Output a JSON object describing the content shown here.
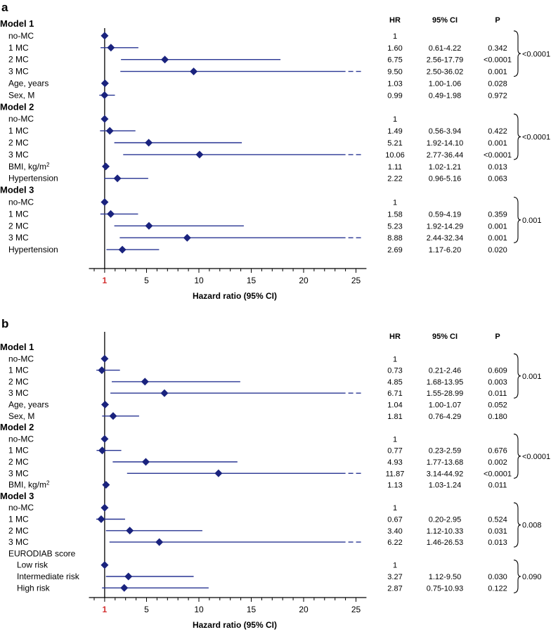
{
  "chart_data": [
    {
      "type": "forest",
      "panel_label": "a",
      "xlabel": "Hazard ratio (95% CI)",
      "xlim": [
        -0.5,
        26
      ],
      "xticks": [
        1,
        5,
        10,
        15,
        20,
        25
      ],
      "reference_line": 1,
      "arrow_cap": 24,
      "columns": {
        "hr": "HR",
        "ci": "95% CI",
        "p": "P"
      },
      "rows": [
        {
          "kind": "header",
          "label": "Model 1"
        },
        {
          "kind": "item",
          "label": "no-MC",
          "hr": 1,
          "lo": 1,
          "hi": 1,
          "hr_text": "1",
          "ci_text": "",
          "p_text": ""
        },
        {
          "kind": "item",
          "label": "1 MC",
          "hr": 1.6,
          "lo": 0.61,
          "hi": 4.22,
          "hr_text": "1.60",
          "ci_text": "0.61-4.22",
          "p_text": "0.342"
        },
        {
          "kind": "item",
          "label": "2 MC",
          "hr": 6.75,
          "lo": 2.56,
          "hi": 17.79,
          "hr_text": "6.75",
          "ci_text": "2.56-17.79",
          "p_text": "<0.0001"
        },
        {
          "kind": "item",
          "label": "3 MC",
          "hr": 9.5,
          "lo": 2.5,
          "hi": 36.02,
          "hr_text": "9.50",
          "ci_text": "2.50-36.02",
          "p_text": "0.001"
        },
        {
          "kind": "item",
          "label": "Age, years",
          "hr": 1.03,
          "lo": 1.0,
          "hi": 1.06,
          "hr_text": "1.03",
          "ci_text": "1.00-1.06",
          "p_text": "0.028"
        },
        {
          "kind": "item",
          "label": "Sex, M",
          "hr": 0.99,
          "lo": 0.49,
          "hi": 1.98,
          "hr_text": "0.99",
          "ci_text": "0.49-1.98",
          "p_text": "0.972"
        },
        {
          "kind": "header",
          "label": "Model 2"
        },
        {
          "kind": "item",
          "label": "no-MC",
          "hr": 1,
          "lo": 1,
          "hi": 1,
          "hr_text": "1",
          "ci_text": "",
          "p_text": ""
        },
        {
          "kind": "item",
          "label": "1 MC",
          "hr": 1.49,
          "lo": 0.56,
          "hi": 3.94,
          "hr_text": "1.49",
          "ci_text": "0.56-3.94",
          "p_text": "0.422"
        },
        {
          "kind": "item",
          "label": "2 MC",
          "hr": 5.21,
          "lo": 1.92,
          "hi": 14.1,
          "hr_text": "5.21",
          "ci_text": "1.92-14.10",
          "p_text": "0.001"
        },
        {
          "kind": "item",
          "label": "3 MC",
          "hr": 10.06,
          "lo": 2.77,
          "hi": 36.44,
          "hr_text": "10.06",
          "ci_text": "2.77-36.44",
          "p_text": "<0.0001"
        },
        {
          "kind": "item",
          "label": "BMI, kg/m",
          "sup": "2",
          "hr": 1.11,
          "lo": 1.02,
          "hi": 1.21,
          "hr_text": "1.11",
          "ci_text": "1.02-1.21",
          "p_text": "0.013"
        },
        {
          "kind": "item",
          "label": "Hypertension",
          "hr": 2.22,
          "lo": 0.96,
          "hi": 5.16,
          "hr_text": "2.22",
          "ci_text": "0.96-5.16",
          "p_text": "0.063"
        },
        {
          "kind": "header",
          "label": "Model 3"
        },
        {
          "kind": "item",
          "label": "no-MC",
          "hr": 1,
          "lo": 1,
          "hi": 1,
          "hr_text": "1",
          "ci_text": "",
          "p_text": ""
        },
        {
          "kind": "item",
          "label": "1 MC",
          "hr": 1.58,
          "lo": 0.59,
          "hi": 4.19,
          "hr_text": "1.58",
          "ci_text": "0.59-4.19",
          "p_text": "0.359"
        },
        {
          "kind": "item",
          "label": "2 MC",
          "hr": 5.23,
          "lo": 1.92,
          "hi": 14.29,
          "hr_text": "5.23",
          "ci_text": "1.92-14.29",
          "p_text": "0.001"
        },
        {
          "kind": "item",
          "label": "3 MC",
          "hr": 8.88,
          "lo": 2.44,
          "hi": 32.34,
          "hr_text": "8.88",
          "ci_text": "2.44-32.34",
          "p_text": "0.001"
        },
        {
          "kind": "item",
          "label": "Hypertension",
          "hr": 2.69,
          "lo": 1.17,
          "hi": 6.2,
          "hr_text": "2.69",
          "ci_text": "1.17-6.20",
          "p_text": "0.020"
        }
      ],
      "trend_brackets": [
        {
          "first_row": 1,
          "last_row": 4,
          "p_text": "<0.0001"
        },
        {
          "first_row": 8,
          "last_row": 11,
          "p_text": "<0.0001"
        },
        {
          "first_row": 15,
          "last_row": 18,
          "p_text": "0.001"
        }
      ]
    },
    {
      "type": "forest",
      "panel_label": "b",
      "xlabel": "Hazard ratio (95% CI)",
      "xlim": [
        -0.5,
        26
      ],
      "xticks": [
        1,
        5,
        10,
        15,
        20,
        25
      ],
      "reference_line": 1,
      "arrow_cap": 24,
      "columns": {
        "hr": "HR",
        "ci": "95% CI",
        "p": "P"
      },
      "rows": [
        {
          "kind": "header",
          "label": "Model 1"
        },
        {
          "kind": "item",
          "label": "no-MC",
          "hr": 1,
          "lo": 1,
          "hi": 1,
          "hr_text": "1",
          "ci_text": "",
          "p_text": ""
        },
        {
          "kind": "item",
          "label": "1 MC",
          "hr": 0.73,
          "lo": 0.21,
          "hi": 2.46,
          "hr_text": "0.73",
          "ci_text": "0.21-2.46",
          "p_text": "0.609"
        },
        {
          "kind": "item",
          "label": "2 MC",
          "hr": 4.85,
          "lo": 1.68,
          "hi": 13.95,
          "hr_text": "4.85",
          "ci_text": "1.68-13.95",
          "p_text": "0.003"
        },
        {
          "kind": "item",
          "label": "3 MC",
          "hr": 6.71,
          "lo": 1.55,
          "hi": 28.99,
          "hr_text": "6.71",
          "ci_text": "1.55-28.99",
          "p_text": "0.011"
        },
        {
          "kind": "item",
          "label": "Age, years",
          "hr": 1.04,
          "lo": 1.0,
          "hi": 1.07,
          "hr_text": "1.04",
          "ci_text": "1.00-1.07",
          "p_text": "0.052"
        },
        {
          "kind": "item",
          "label": "Sex, M",
          "hr": 1.81,
          "lo": 0.76,
          "hi": 4.29,
          "hr_text": "1.81",
          "ci_text": "0.76-4.29",
          "p_text": "0.180"
        },
        {
          "kind": "header",
          "label": "Model 2"
        },
        {
          "kind": "item",
          "label": "no-MC",
          "hr": 1,
          "lo": 1,
          "hi": 1,
          "hr_text": "1",
          "ci_text": "",
          "p_text": ""
        },
        {
          "kind": "item",
          "label": "1 MC",
          "hr": 0.77,
          "lo": 0.23,
          "hi": 2.59,
          "hr_text": "0.77",
          "ci_text": "0.23-2.59",
          "p_text": "0.676"
        },
        {
          "kind": "item",
          "label": "2 MC",
          "hr": 4.93,
          "lo": 1.77,
          "hi": 13.68,
          "hr_text": "4.93",
          "ci_text": "1.77-13.68",
          "p_text": "0.002"
        },
        {
          "kind": "item",
          "label": "3 MC",
          "hr": 11.87,
          "lo": 3.14,
          "hi": 44.92,
          "hr_text": "11.87",
          "ci_text": "3.14-44.92",
          "p_text": "<0.0001"
        },
        {
          "kind": "item",
          "label": "BMI, kg/m",
          "sup": "2",
          "hr": 1.13,
          "lo": 1.03,
          "hi": 1.24,
          "hr_text": "1.13",
          "ci_text": "1.03-1.24",
          "p_text": "0.011"
        },
        {
          "kind": "header",
          "label": "Model 3"
        },
        {
          "kind": "item",
          "label": "no-MC",
          "hr": 1,
          "lo": 1,
          "hi": 1,
          "hr_text": "1",
          "ci_text": "",
          "p_text": ""
        },
        {
          "kind": "item",
          "label": "1 MC",
          "hr": 0.67,
          "lo": 0.2,
          "hi": 2.95,
          "hr_text": "0.67",
          "ci_text": "0.20-2.95",
          "p_text": "0.524"
        },
        {
          "kind": "item",
          "label": "2 MC",
          "hr": 3.4,
          "lo": 1.12,
          "hi": 10.33,
          "hr_text": "3.40",
          "ci_text": "1.12-10.33",
          "p_text": "0.031"
        },
        {
          "kind": "item",
          "label": "3 MC",
          "hr": 6.22,
          "lo": 1.46,
          "hi": 26.53,
          "hr_text": "6.22",
          "ci_text": "1.46-26.53",
          "p_text": "0.013"
        },
        {
          "kind": "sublabel",
          "label": "EURODIAB score"
        },
        {
          "kind": "item",
          "label": "Low risk",
          "indent": 2,
          "hr": 1,
          "lo": 1,
          "hi": 1,
          "hr_text": "1",
          "ci_text": "",
          "p_text": ""
        },
        {
          "kind": "item",
          "label": "Intermediate risk",
          "indent": 2,
          "hr": 3.27,
          "lo": 1.12,
          "hi": 9.5,
          "hr_text": "3.27",
          "ci_text": "1.12-9.50",
          "p_text": "0.030"
        },
        {
          "kind": "item",
          "label": "High risk",
          "indent": 2,
          "hr": 2.87,
          "lo": 0.75,
          "hi": 10.93,
          "hr_text": "2.87",
          "ci_text": "0.75-10.93",
          "p_text": "0.122"
        }
      ],
      "trend_brackets": [
        {
          "first_row": 1,
          "last_row": 4,
          "p_text": "0.001"
        },
        {
          "first_row": 8,
          "last_row": 11,
          "p_text": "<0.0001"
        },
        {
          "first_row": 14,
          "last_row": 17,
          "p_text": "0.008"
        },
        {
          "first_row": 19,
          "last_row": 21,
          "p_text": "0.090"
        }
      ]
    }
  ],
  "colors": {
    "marker": "#1a237e",
    "ci_line": "#283593",
    "axis": "#000000",
    "tick_one": "#d32f2f"
  }
}
